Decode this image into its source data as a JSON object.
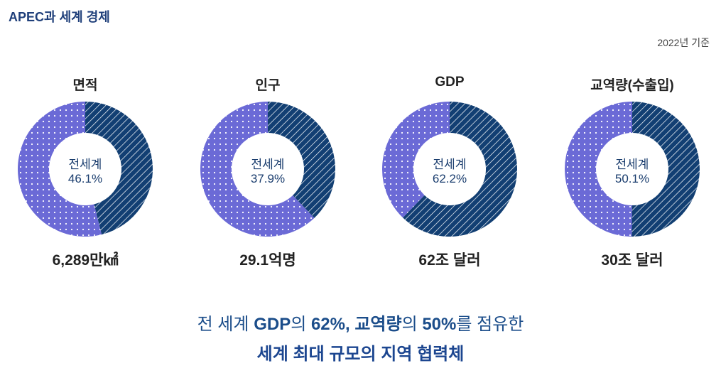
{
  "header": {
    "title": "APEC과 세계 경제",
    "basis": "2022년 기준"
  },
  "colors": {
    "apec": "#123f73",
    "apec_stripe": "#ffffff",
    "rest": "#6b6ad6",
    "rest_dot": "#ffffff",
    "center_text": "#1a3d6e",
    "footer_text": "#1b4d8a"
  },
  "chart_data": [
    {
      "type": "pie",
      "title": "면적",
      "center_label": "전세계",
      "center_value": "46.1%",
      "share": 46.1,
      "amount": "6,289만㎢"
    },
    {
      "type": "pie",
      "title": "인구",
      "center_label": "전세계",
      "center_value": "37.9%",
      "share": 37.9,
      "amount": "29.1억명"
    },
    {
      "type": "pie",
      "title": "GDP",
      "center_label": "전세계",
      "center_value": "62.2%",
      "share": 62.2,
      "amount": "62조 달러"
    },
    {
      "type": "pie",
      "title": "교역량(수출입)",
      "center_label": "전세계",
      "center_value": "50.1%",
      "share": 50.1,
      "amount": "30조 달러"
    }
  ],
  "footer": {
    "line1": {
      "p1": "전 세계 ",
      "b1": "GDP",
      "p2": "의 ",
      "b2": "62%, 교역량",
      "p3": "의 ",
      "b3": "50%",
      "p4": "를 점유한"
    },
    "line2": "세계 최대 규모의 지역 협력체"
  }
}
